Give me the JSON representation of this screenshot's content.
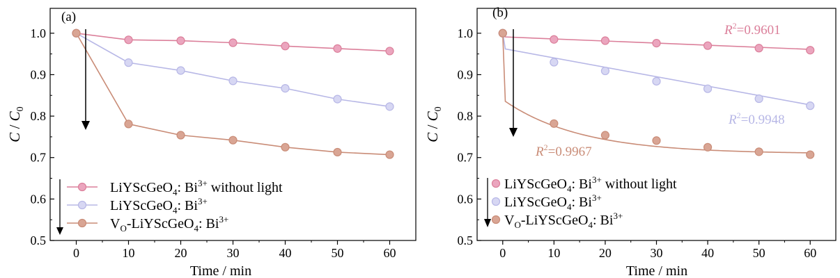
{
  "colors": {
    "pink": "#DB7F9A",
    "pink_fill": "#EBA5BE",
    "lavender": "#B7B7E6",
    "lavender_fill": "#D7D7F3",
    "salmon": "#C98C77",
    "salmon_fill": "#D9A594",
    "axis": "#000000"
  },
  "chart_data": [
    {
      "type": "line",
      "panel_label": "(a)",
      "xlabel": "Time / min",
      "ylabel_main": "C",
      "ylabel_sep": " / ",
      "ylabel_sub_base": "C",
      "ylabel_sub": "0",
      "xlim": [
        -5,
        65
      ],
      "ylim": [
        0.5,
        1.06
      ],
      "xticks": [
        0,
        10,
        20,
        30,
        40,
        50,
        60
      ],
      "yticks": [
        0.5,
        0.6,
        0.7,
        0.8,
        0.9,
        1.0
      ],
      "ytick_labels": [
        "0.5",
        "0.6",
        "0.7",
        "0.8",
        "0.9",
        "1.0"
      ],
      "x": [
        0,
        10,
        20,
        30,
        40,
        50,
        60
      ],
      "series": [
        {
          "base": "LiYScGeO",
          "sub": "4",
          "tail": ": Bi",
          "sup": "3+",
          "suffix": " without light",
          "values": [
            1.0,
            0.984,
            0.982,
            0.977,
            0.969,
            0.963,
            0.957
          ]
        },
        {
          "base": "LiYScGeO",
          "sub": "4",
          "tail": ": Bi",
          "sup": "3+",
          "suffix": "",
          "values": [
            1.0,
            0.929,
            0.91,
            0.885,
            0.867,
            0.841,
            0.823
          ]
        },
        {
          "prefix": "V",
          "prefix_sub": "O",
          "base": "-LiYScGeO",
          "sub": "4",
          "tail": ": Bi",
          "sup": "3+",
          "suffix": "",
          "values": [
            1.0,
            0.781,
            0.754,
            0.742,
            0.725,
            0.713,
            0.707
          ]
        }
      ],
      "legend_position": "bottom-left",
      "grid": false
    },
    {
      "type": "scatter",
      "panel_label": "(b)",
      "xlabel": "Time / min",
      "ylabel_main": "C",
      "ylabel_sep": " / ",
      "ylabel_sub_base": "C",
      "ylabel_sub": "0",
      "xlim": [
        -5,
        65
      ],
      "ylim": [
        0.5,
        1.06
      ],
      "xticks": [
        0,
        10,
        20,
        30,
        40,
        50,
        60
      ],
      "yticks": [
        0.5,
        0.6,
        0.7,
        0.8,
        0.9,
        1.0
      ],
      "ytick_labels": [
        "0.5",
        "0.6",
        "0.7",
        "0.8",
        "0.9",
        "1.0"
      ],
      "x": [
        0,
        10,
        20,
        30,
        40,
        50,
        60
      ],
      "series": [
        {
          "base": "LiYScGeO",
          "sub": "4",
          "tail": ": Bi",
          "sup": "3+",
          "suffix": " without light",
          "values": [
            1.0,
            0.985,
            0.982,
            0.976,
            0.97,
            0.964,
            0.959
          ],
          "fit": {
            "x": [
              0.5,
              60
            ],
            "y": [
              0.991,
              0.961
            ]
          },
          "r2_label": "R",
          "r2_sup": "2",
          "r2_value": "=0.9601"
        },
        {
          "base": "LiYScGeO",
          "sub": "4",
          "tail": ": Bi",
          "sup": "3+",
          "suffix": "",
          "values": [
            1.0,
            0.93,
            0.909,
            0.884,
            0.866,
            0.842,
            0.825
          ],
          "fit": {
            "x": [
              0.5,
              60
            ],
            "y": [
              0.962,
              0.827
            ]
          },
          "r2_label": "R",
          "r2_sup": "2",
          "r2_value": "=0.9948"
        },
        {
          "prefix": "V",
          "prefix_sub": "O",
          "base": "-LiYScGeO",
          "sub": "4",
          "tail": ": Bi",
          "sup": "3+",
          "suffix": "",
          "values": [
            1.0,
            0.782,
            0.754,
            0.741,
            0.725,
            0.714,
            0.707
          ],
          "fit": {
            "y0": 0.84,
            "y_inf": 0.709,
            "tau": 15,
            "x_end": 60
          },
          "r2_label": "R",
          "r2_sup": "2",
          "r2_value": "=0.9967"
        }
      ],
      "legend_position": "bottom-left",
      "grid": false
    }
  ]
}
